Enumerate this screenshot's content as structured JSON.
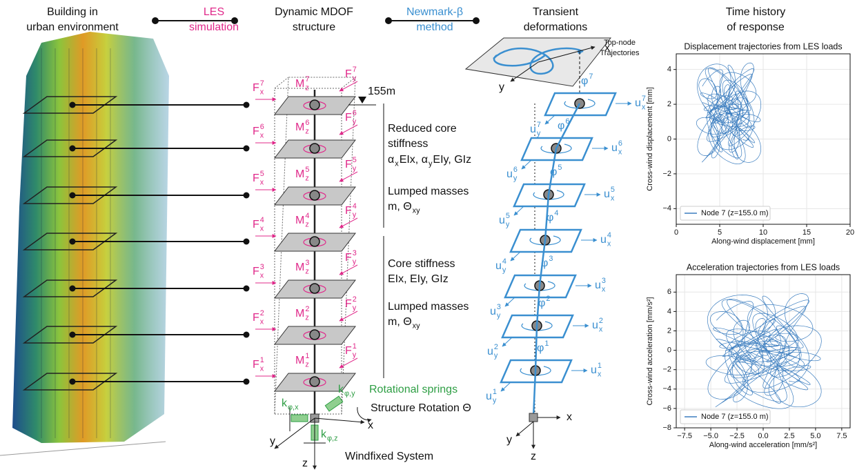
{
  "headers": [
    [
      "Building in",
      "urban environment"
    ],
    [
      "LES",
      "simulation"
    ],
    [
      "Dynamic MDOF",
      "structure"
    ],
    [
      "Newmark-β",
      "method"
    ],
    [
      "Transient",
      "deformations"
    ],
    [
      "Time history",
      "of response"
    ]
  ],
  "structure": {
    "floors": [
      {
        "fx": {
          "base": "F",
          "sup": "7",
          "sub": "x"
        },
        "mz": {
          "base": "M",
          "sup": "7",
          "sub": "z"
        },
        "fy": {
          "base": "F",
          "sup": "7",
          "sub": "y"
        }
      },
      {
        "fx": {
          "base": "F",
          "sup": "6",
          "sub": "x"
        },
        "mz": {
          "base": "M",
          "sup": "6",
          "sub": "z"
        },
        "fy": {
          "base": "F",
          "sup": "6",
          "sub": "y"
        }
      },
      {
        "fx": {
          "base": "F",
          "sup": "5",
          "sub": "x"
        },
        "mz": {
          "base": "M",
          "sup": "5",
          "sub": "z"
        },
        "fy": {
          "base": "F",
          "sup": "5",
          "sub": "y"
        }
      },
      {
        "fx": {
          "base": "F",
          "sup": "4",
          "sub": "x"
        },
        "mz": {
          "base": "M",
          "sup": "4",
          "sub": "z"
        },
        "fy": {
          "base": "F",
          "sup": "4",
          "sub": "y"
        }
      },
      {
        "fx": {
          "base": "F",
          "sup": "3",
          "sub": "x"
        },
        "mz": {
          "base": "M",
          "sup": "3",
          "sub": "z"
        },
        "fy": {
          "base": "F",
          "sup": "3",
          "sub": "y"
        }
      },
      {
        "fx": {
          "base": "F",
          "sup": "2",
          "sub": "x"
        },
        "mz": {
          "base": "M",
          "sup": "2",
          "sub": "z"
        },
        "fy": {
          "base": "F",
          "sup": "2",
          "sub": "y"
        }
      },
      {
        "fx": {
          "base": "F",
          "sup": "1",
          "sub": "x"
        },
        "mz": {
          "base": "M",
          "sup": "1",
          "sub": "z"
        },
        "fy": {
          "base": "F",
          "sup": "1",
          "sub": "y"
        }
      }
    ],
    "height": "155m",
    "upper": {
      "stiffness_title": [
        "Reduced core",
        "stiffness"
      ],
      "stiffness": [
        {
          "base": "α",
          "sub": "x"
        },
        {
          "base": "EIx, α",
          "sub": "y"
        },
        {
          "base": "EIy, GIz"
        }
      ],
      "masses_title": "Lumped masses",
      "masses": {
        "base": "m, Θ",
        "sub": "xy"
      }
    },
    "lower": {
      "stiffness_title": [
        "Core stiffness"
      ],
      "stiffness": [
        {
          "base": "EIx, EIy, GIz"
        }
      ],
      "masses_title": "Lumped masses",
      "masses": {
        "base": "m, Θ",
        "sub": "xy"
      }
    },
    "springs": [
      {
        "base": "k",
        "sub": "φ,x"
      },
      {
        "base": "k",
        "sub": "φ,y"
      },
      {
        "base": "k",
        "sub": "φ,z"
      }
    ],
    "springs_label": "Rotational springs",
    "rotation_label": "Structure Rotation Θ",
    "axes": [
      "x",
      "y",
      "z"
    ],
    "system": "Windfixed System"
  },
  "deformation": {
    "trajectory_label": [
      "Top-node",
      "Trajectories"
    ],
    "plane_axes": [
      "x",
      "y"
    ],
    "floors": [
      {
        "ux": {
          "base": "u",
          "sup": "7",
          "sub": "x"
        },
        "uy": {
          "base": "u",
          "sup": "7",
          "sub": "y"
        },
        "phi": {
          "base": "φ",
          "sup": "7"
        }
      },
      {
        "ux": {
          "base": "u",
          "sup": "6",
          "sub": "x"
        },
        "uy": {
          "base": "u",
          "sup": "6",
          "sub": "y"
        },
        "phi": {
          "base": "φ",
          "sup": "6"
        }
      },
      {
        "ux": {
          "base": "u",
          "sup": "5",
          "sub": "x"
        },
        "uy": {
          "base": "u",
          "sup": "5",
          "sub": "y"
        },
        "phi": {
          "base": "φ",
          "sup": "5"
        }
      },
      {
        "ux": {
          "base": "u",
          "sup": "4",
          "sub": "x"
        },
        "uy": {
          "base": "u",
          "sup": "4",
          "sub": "y"
        },
        "phi": {
          "base": "φ",
          "sup": "4"
        }
      },
      {
        "ux": {
          "base": "u",
          "sup": "3",
          "sub": "x"
        },
        "uy": {
          "base": "u",
          "sup": "3",
          "sub": "y"
        },
        "phi": {
          "base": "φ",
          "sup": "3"
        }
      },
      {
        "ux": {
          "base": "u",
          "sup": "2",
          "sub": "x"
        },
        "uy": {
          "base": "u",
          "sup": "2",
          "sub": "y"
        },
        "phi": {
          "base": "φ",
          "sup": "2"
        }
      },
      {
        "ux": {
          "base": "u",
          "sup": "1",
          "sub": "x"
        },
        "uy": {
          "base": "u",
          "sup": "1",
          "sub": "y"
        },
        "phi": {
          "base": "φ",
          "sup": "1"
        }
      }
    ],
    "base_axes": [
      "x",
      "y",
      "z"
    ]
  },
  "plots": [
    {
      "title": "Displacement trajectories from LES loads",
      "xlabel": "Along-wind displacement [mm]",
      "ylabel": "Cross-wind displacement [mm]",
      "legend": "Node 7 (z=155.0 m)",
      "color": "#3b7dbf",
      "grid": true,
      "xlim": [
        0,
        20
      ],
      "ylim": [
        -4.9,
        4.9
      ],
      "xticks": [
        0,
        5,
        10,
        15,
        20
      ],
      "yticks": [
        {
          "value": -4,
          "label": "−4"
        },
        {
          "value": -2,
          "label": "−2"
        },
        0,
        2,
        4
      ]
    },
    {
      "title": "Acceleration trajectories from LES loads",
      "xlabel": "Along-wind acceleration [mm/s²]",
      "ylabel": "Cross-wind acceleration [mm/s²]",
      "legend": "Node 7 (z=155.0 m)",
      "color": "#3b7dbf",
      "grid": true,
      "xlim": [
        -8.3,
        8.3
      ],
      "ylim": [
        -8,
        7.8
      ],
      "xticks": [
        {
          "value": -7.5,
          "label": "−7.5"
        },
        {
          "value": -5,
          "label": "−5.0"
        },
        {
          "value": -2.5,
          "label": "−2.5"
        },
        {
          "value": 0,
          "label": "0.0"
        },
        {
          "value": 2.5,
          "label": "2.5"
        },
        {
          "value": 5,
          "label": "5.0"
        },
        {
          "value": 7.5,
          "label": "7.5"
        }
      ],
      "yticks": [
        {
          "value": -8,
          "label": "−8"
        },
        {
          "value": -6,
          "label": "−6"
        },
        {
          "value": -4,
          "label": "−4"
        },
        {
          "value": -2,
          "label": "−2"
        },
        0,
        2,
        4,
        6
      ]
    }
  ]
}
